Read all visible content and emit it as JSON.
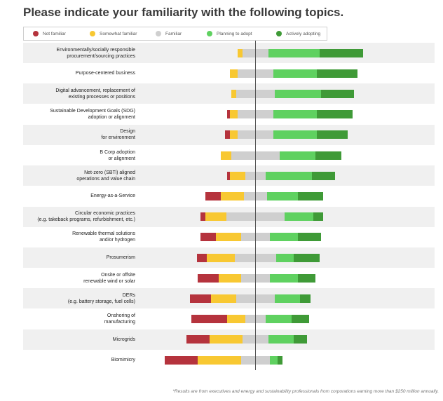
{
  "title": "Please indicate your familiarity with the following topics.",
  "legend": [
    {
      "label": "Not familiar",
      "color": "#b5333d"
    },
    {
      "label": "Somewhat familiar",
      "color": "#f8c832"
    },
    {
      "label": "Familiar",
      "color": "#cfcfcf"
    },
    {
      "label": "Planning to adopt",
      "color": "#5fd160"
    },
    {
      "label": "Actively adopting",
      "color": "#3f9a37"
    }
  ],
  "footnote": "*Results are from executives and energy and sustainability professionals from corporations earning more than $250 million annually.",
  "chart_data": {
    "type": "bar",
    "subtype": "diverging-stacked",
    "title": "Please indicate your familiarity with the following topics.",
    "unit": "percent of respondents (estimated)",
    "series": [
      {
        "name": "Not familiar",
        "values": [
          0,
          0,
          0,
          1,
          2,
          0,
          1,
          6,
          2,
          6,
          4,
          8,
          8,
          14,
          9,
          13
        ]
      },
      {
        "name": "Somewhat familiar",
        "values": [
          2,
          3,
          2,
          3,
          3,
          4,
          6,
          9,
          8,
          10,
          11,
          9,
          10,
          7,
          13,
          17
        ]
      },
      {
        "name": "Familiar",
        "values": [
          10,
          14,
          15,
          14,
          14,
          19,
          8,
          9,
          23,
          11,
          16,
          11,
          15,
          8,
          10,
          11
        ]
      },
      {
        "name": "Planning to adopt",
        "values": [
          20,
          17,
          18,
          17,
          17,
          14,
          18,
          12,
          11,
          11,
          7,
          11,
          10,
          10,
          10,
          3
        ]
      },
      {
        "name": "Actively adopting",
        "values": [
          17,
          16,
          13,
          14,
          12,
          10,
          9,
          10,
          4,
          9,
          10,
          7,
          4,
          7,
          5,
          2
        ]
      }
    ],
    "categories": [
      [
        "Environmentally/socially responsible",
        "procurement/sourcing practices"
      ],
      [
        "Purpose-centered business"
      ],
      [
        "Digital advancement, replacement of",
        "existing processes or positions"
      ],
      [
        "Sustainable Development Goals (SDG)",
        "adoption or alignment"
      ],
      [
        "Design",
        "for environment"
      ],
      [
        "B Corp adoption",
        "or alignment"
      ],
      [
        "Net-zero (SBTi) aligned",
        "operations and value chain"
      ],
      [
        "Energy-as-a-Service"
      ],
      [
        "Circular economic practices",
        "(e.g. takeback programs, refurbishment, etc.)"
      ],
      [
        "Renewable thermal solutions",
        "and/or hydrogen"
      ],
      [
        "Prosumerism"
      ],
      [
        "Onsite or offsite",
        "renewable wind or solar"
      ],
      [
        "DERs",
        "(e.g. battery storage, fuel cells)"
      ],
      [
        "Onshoring of",
        "manufacturing"
      ],
      [
        "Microgrids"
      ],
      [
        "Biomimicry"
      ]
    ],
    "center_split": "Familiar segment is split evenly across the center axis",
    "shaded_rows": [
      0,
      2,
      4,
      6,
      8,
      10,
      12,
      14
    ]
  }
}
